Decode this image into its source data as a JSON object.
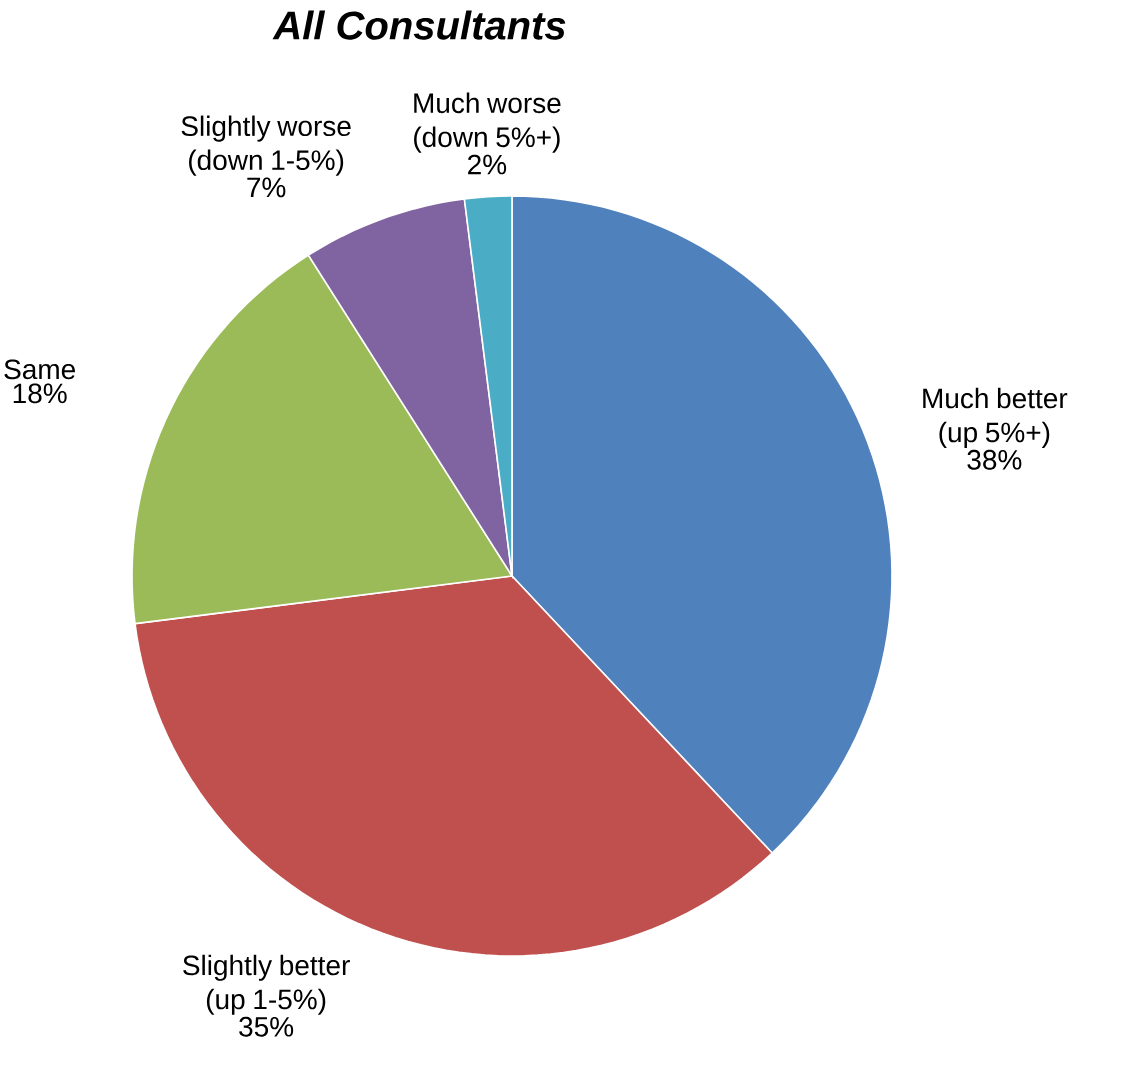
{
  "chart_data": {
    "type": "pie",
    "title": "All Consultants",
    "categories": [
      "Much better (up 5%+)",
      "Slightly better (up 1-5%)",
      "Same",
      "Slightly worse (down 1-5%)",
      "Much worse (down 5%+)"
    ],
    "values": [
      38,
      35,
      18,
      7,
      2
    ],
    "value_labels": [
      "38%",
      "35%",
      "18%",
      "7%",
      "2%"
    ],
    "colors": [
      "#4f81bd",
      "#c0504d",
      "#9bbb59",
      "#8064a2",
      "#4bacc6"
    ]
  }
}
